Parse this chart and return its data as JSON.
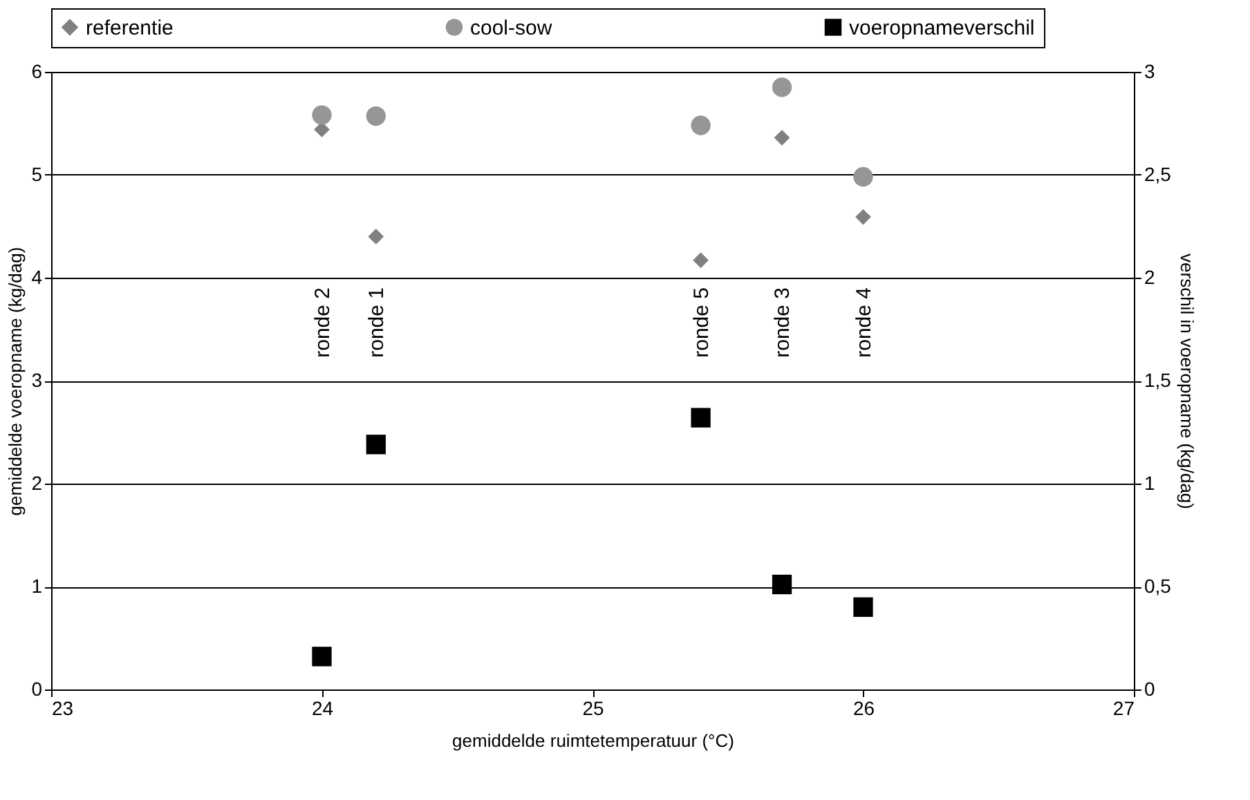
{
  "chart_data": {
    "type": "scatter",
    "xlabel": "gemiddelde ruimtetemperatuur (°C)",
    "ylabel": "gemiddelde voeropname (kg/dag)",
    "y2label": "verschil in voeropname (kg/dag)",
    "xlim": [
      23,
      27
    ],
    "xticks": [
      23,
      24,
      25,
      26,
      27
    ],
    "ylim": [
      0,
      6
    ],
    "yticks": [
      0,
      1,
      2,
      3,
      4,
      5,
      6
    ],
    "y2lim": [
      0,
      3
    ],
    "y2ticks": [
      0,
      {
        "value": 0.5,
        "label": "0,5"
      },
      1,
      {
        "value": 1.5,
        "label": "1,5"
      },
      2,
      {
        "value": 2.5,
        "label": "2,5"
      },
      3
    ],
    "grid": "y",
    "legend": "top",
    "series": [
      {
        "name": "referentie",
        "color": "#808080",
        "marker": "diamond",
        "x": [
          24,
          24.2,
          25.4,
          25.7,
          26
        ],
        "values": [
          5.44,
          4.4,
          4.17,
          5.36,
          4.59
        ]
      },
      {
        "name": "cool-sow",
        "color": "#969696",
        "marker": "circle",
        "x": [
          24,
          24.2,
          25.4,
          25.7,
          26
        ],
        "values": [
          5.58,
          5.57,
          5.48,
          5.85,
          4.98
        ]
      },
      {
        "name": "voeropnameverschil",
        "color": "#000000",
        "marker": "square",
        "axis": "y2",
        "x": [
          24,
          24.2,
          25.4,
          25.7,
          26
        ],
        "values": [
          0.16,
          1.19,
          1.32,
          0.51,
          0.4
        ]
      }
    ],
    "annotations": [
      "ronde 2",
      "ronde 1",
      "ronde 5",
      "ronde 3",
      "ronde 4"
    ]
  }
}
